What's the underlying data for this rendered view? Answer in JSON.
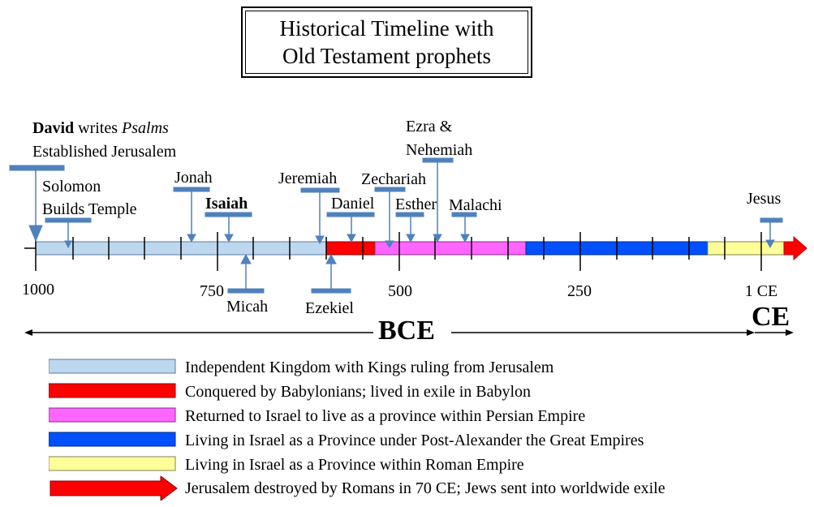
{
  "title": {
    "line1": "Historical Timeline with",
    "line2": "Old Testament prophets"
  },
  "axis": {
    "ticks": [
      "1000",
      "750",
      "500",
      "250",
      "1 CE"
    ],
    "era_bce": "BCE",
    "era_ce": "CE"
  },
  "events": {
    "david_name": "David",
    "david_writes": "writes",
    "david_psalms": "Psalms",
    "david_line2": "Established Jerusalem",
    "solomon_line1": "Solomon",
    "solomon_line2": "Builds Temple",
    "jonah": "Jonah",
    "isaiah": "Isaiah",
    "micah": "Micah",
    "jeremiah": "Jeremiah",
    "ezekiel": "Ezekiel",
    "daniel": "Daniel",
    "zechariah": "Zechariah",
    "esther": "Esther",
    "ezra_line1": "Ezra &",
    "ezra_line2": "Nehemiah",
    "malachi": "Malachi",
    "jesus": "Jesus"
  },
  "periods": [
    {
      "label": "Independent Kingdom with Kings ruling from Jerusalem",
      "color": "#bdd7ee"
    },
    {
      "label": "Conquered by Babylonians; lived in exile in Babylon",
      "color": "#ff0000"
    },
    {
      "label": "Returned to Israel to live as a province within Persian Empire",
      "color": "#ff66ff"
    },
    {
      "label": "Living in Israel as a Province under Post-Alexander the Great Empires",
      "color": "#0050ff"
    },
    {
      "label": "Living in Israel as a Province within Roman Empire",
      "color": "#ffff99"
    },
    {
      "label": "Jerusalem destroyed by Romans in 70 CE; Jews sent into worldwide exile",
      "color": "#ff0000"
    }
  ],
  "colors": {
    "marker": "#4f81bd"
  }
}
